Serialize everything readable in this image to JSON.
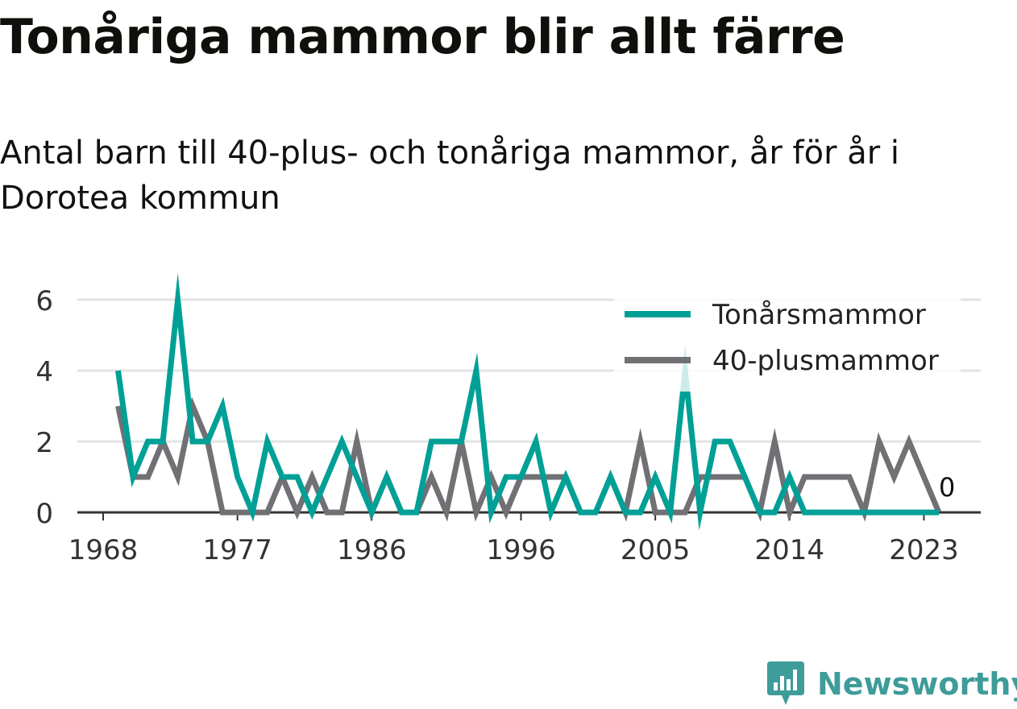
{
  "title": "Tonåriga mammor blir allt färre",
  "subtitle": "Antal barn till 40-plus- och tonåriga mammor, år för år i Dorotea kommun",
  "brand": {
    "name": "Newsworthy",
    "logo_icon": "bar-chart-icon",
    "color": "#3e9c99"
  },
  "chart_data": {
    "type": "line",
    "x": [
      1969,
      1970,
      1971,
      1972,
      1973,
      1974,
      1975,
      1976,
      1977,
      1978,
      1979,
      1980,
      1981,
      1982,
      1983,
      1984,
      1985,
      1986,
      1987,
      1988,
      1989,
      1990,
      1991,
      1992,
      1993,
      1994,
      1995,
      1996,
      1997,
      1998,
      1999,
      2000,
      2001,
      2002,
      2003,
      2004,
      2005,
      2006,
      2007,
      2008,
      2009,
      2010,
      2011,
      2012,
      2013,
      2014,
      2015,
      2016,
      2017,
      2018,
      2019,
      2020,
      2021,
      2022,
      2023,
      2024
    ],
    "series": [
      {
        "name": "Tonårsmammor",
        "color": "#00a096",
        "values": [
          4,
          1,
          2,
          2,
          6,
          2,
          2,
          3,
          1,
          0,
          2,
          1,
          1,
          0,
          1,
          2,
          1,
          0,
          1,
          0,
          0,
          2,
          2,
          2,
          4,
          0,
          1,
          1,
          2,
          0,
          1,
          0,
          0,
          1,
          0,
          0,
          1,
          0,
          4,
          0,
          2,
          2,
          1,
          0,
          0,
          1,
          0,
          0,
          0,
          0,
          0,
          0,
          0,
          0,
          0,
          0
        ]
      },
      {
        "name": "40-plusmammor",
        "color": "#707075",
        "values": [
          3,
          1,
          1,
          2,
          1,
          3,
          2,
          0,
          0,
          0,
          0,
          1,
          0,
          1,
          0,
          0,
          2,
          0,
          1,
          0,
          0,
          1,
          0,
          2,
          0,
          1,
          0,
          1,
          1,
          1,
          1,
          0,
          0,
          1,
          0,
          2,
          0,
          0,
          0,
          1,
          1,
          1,
          1,
          0,
          2,
          0,
          1,
          1,
          1,
          1,
          0,
          2,
          1,
          2,
          1,
          0
        ]
      }
    ],
    "xticks": [
      "1968",
      "1977",
      "1986",
      "1996",
      "2005",
      "2014",
      "2023"
    ],
    "xtick_values": [
      1968,
      1977,
      1986,
      1996,
      2005,
      2014,
      2023
    ],
    "yticks": [
      "0",
      "2",
      "4",
      "6"
    ],
    "ylim": [
      0,
      6
    ],
    "xlim": [
      1968,
      2024
    ],
    "grid": true,
    "legend_position": "top-right",
    "end_label": "0",
    "xlabel": "",
    "ylabel": ""
  }
}
